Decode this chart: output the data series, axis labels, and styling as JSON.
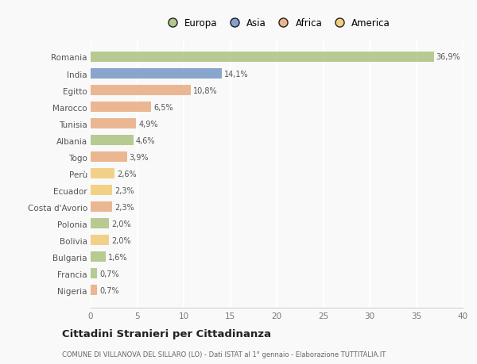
{
  "countries": [
    "Romania",
    "India",
    "Egitto",
    "Marocco",
    "Tunisia",
    "Albania",
    "Togo",
    "Perù",
    "Ecuador",
    "Costa d'Avorio",
    "Polonia",
    "Bolivia",
    "Bulgaria",
    "Francia",
    "Nigeria"
  ],
  "values": [
    36.9,
    14.1,
    10.8,
    6.5,
    4.9,
    4.6,
    3.9,
    2.6,
    2.3,
    2.3,
    2.0,
    2.0,
    1.6,
    0.7,
    0.7
  ],
  "labels": [
    "36,9%",
    "14,1%",
    "10,8%",
    "6,5%",
    "4,9%",
    "4,6%",
    "3,9%",
    "2,6%",
    "2,3%",
    "2,3%",
    "2,0%",
    "2,0%",
    "1,6%",
    "0,7%",
    "0,7%"
  ],
  "colors": [
    "#a8c07a",
    "#7191c4",
    "#e8a87c",
    "#e8a87c",
    "#e8a87c",
    "#a8c07a",
    "#e8a87c",
    "#f0c96e",
    "#f0c96e",
    "#e8a87c",
    "#a8c07a",
    "#f0c96e",
    "#a8c07a",
    "#a8c07a",
    "#e8a87c"
  ],
  "legend": [
    {
      "label": "Europa",
      "color": "#a8c07a"
    },
    {
      "label": "Asia",
      "color": "#7191c4"
    },
    {
      "label": "Africa",
      "color": "#e8a87c"
    },
    {
      "label": "America",
      "color": "#f0c96e"
    }
  ],
  "xlim": [
    0,
    40
  ],
  "xticks": [
    0,
    5,
    10,
    15,
    20,
    25,
    30,
    35,
    40
  ],
  "title": "Cittadini Stranieri per Cittadinanza",
  "subtitle": "COMUNE DI VILLANOVA DEL SILLARO (LO) - Dati ISTAT al 1° gennaio - Elaborazione TUTTITALIA.IT",
  "background_color": "#f9f9f9",
  "grid_color": "#ffffff",
  "bar_height": 0.62
}
